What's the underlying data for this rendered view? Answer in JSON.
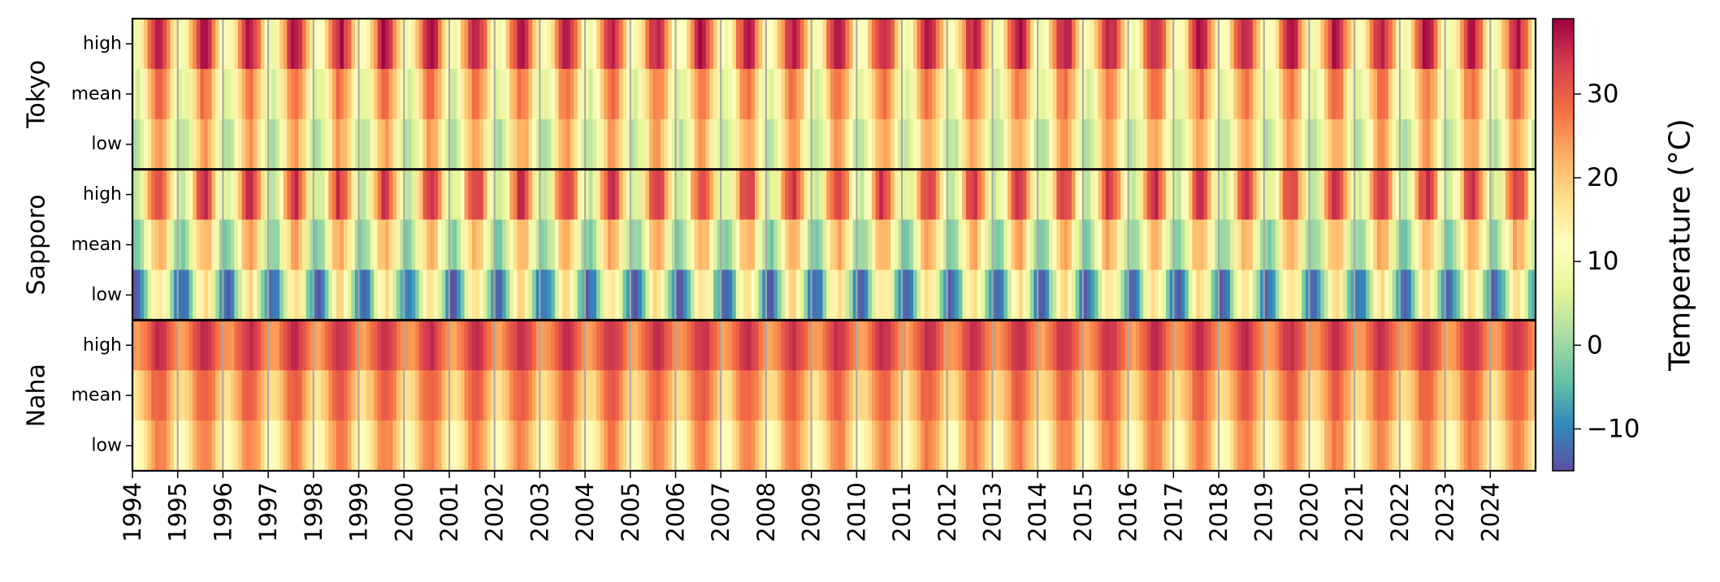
{
  "chart_data": {
    "type": "heatmap",
    "title": "",
    "xlabel": "",
    "ylabel": "",
    "x_tick_labels": [
      "1994",
      "1995",
      "1996",
      "1997",
      "1998",
      "1999",
      "2000",
      "2001",
      "2002",
      "2003",
      "2004",
      "2005",
      "2006",
      "2007",
      "2008",
      "2009",
      "2010",
      "2011",
      "2012",
      "2013",
      "2014",
      "2015",
      "2016",
      "2017",
      "2018",
      "2019",
      "2020",
      "2021",
      "2022",
      "2023",
      "2024"
    ],
    "x_range": [
      "1994-01",
      "2024-12"
    ],
    "months_per_year": 12,
    "groups": [
      {
        "name": "Tokyo",
        "rows": [
          {
            "label": "high",
            "min": 10,
            "max": 37
          },
          {
            "label": "mean",
            "min": 6,
            "max": 28
          },
          {
            "label": "low",
            "min": 2,
            "max": 24
          }
        ]
      },
      {
        "name": "Sapporo",
        "rows": [
          {
            "label": "high",
            "min": 4,
            "max": 34
          },
          {
            "label": "mean",
            "min": -2,
            "max": 23
          },
          {
            "label": "low",
            "min": -13,
            "max": 17
          }
        ]
      },
      {
        "name": "Naha",
        "rows": [
          {
            "label": "high",
            "min": 24,
            "max": 35
          },
          {
            "label": "mean",
            "min": 17,
            "max": 30
          },
          {
            "label": "low",
            "min": 12,
            "max": 27
          }
        ]
      }
    ],
    "colorbar": {
      "label": "Temperature (°C)",
      "range": [
        -15,
        39
      ],
      "ticks": [
        30,
        20,
        10,
        0,
        -10
      ],
      "tick_labels": [
        "30",
        "20",
        "10",
        "0",
        "−10"
      ],
      "colormap": "Spectral_r"
    },
    "colormap_stops": [
      "#5e4fa2",
      "#3288bd",
      "#66c2a5",
      "#abdda4",
      "#e6f598",
      "#ffffbf",
      "#fee08b",
      "#fdae61",
      "#f46d43",
      "#d53e4f",
      "#9e0142"
    ],
    "year_separator_color": "#a8a8a8",
    "group_separator_color": "#000000"
  }
}
